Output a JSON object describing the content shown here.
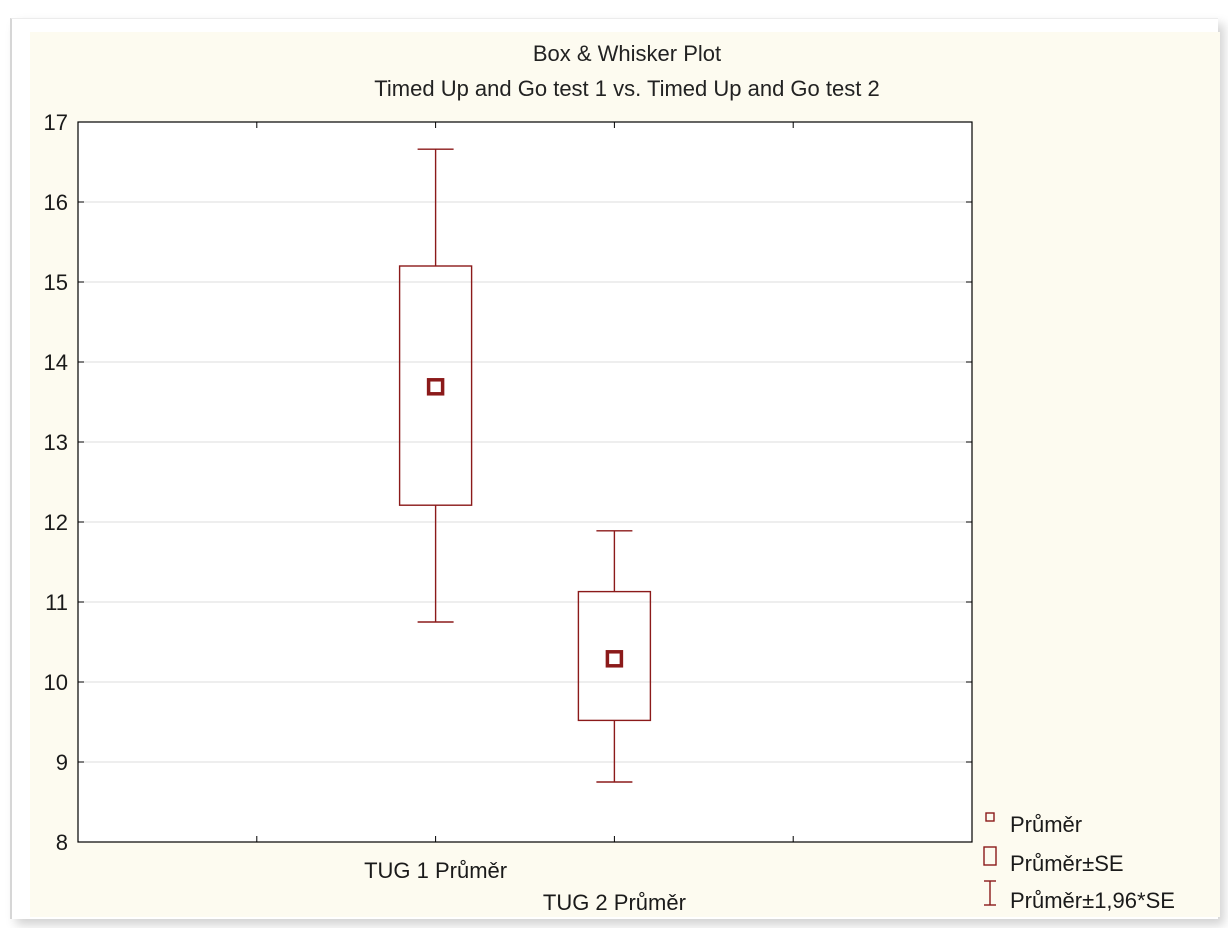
{
  "chart_data": {
    "type": "boxplot",
    "title": "Box & Whisker Plot",
    "subtitle": "Timed Up and Go test 1 vs. Timed Up and Go test 2",
    "xlabel": "",
    "ylabel": "",
    "ylim": [
      8,
      17
    ],
    "yticks": [
      8,
      9,
      10,
      11,
      12,
      13,
      14,
      15,
      16,
      17
    ],
    "grid": true,
    "categories": [
      "TUG 1 Průměr",
      "TUG 2 Průměr"
    ],
    "boxes": [
      {
        "category": "TUG 1 Průměr",
        "mean": 13.69,
        "box_low": 12.21,
        "box_high": 15.2,
        "whisker_low": 10.75,
        "whisker_high": 16.66
      },
      {
        "category": "TUG 2 Průměr",
        "mean": 10.29,
        "box_low": 9.52,
        "box_high": 11.13,
        "whisker_low": 8.75,
        "whisker_high": 11.89
      }
    ],
    "legend": {
      "position": "bottom-right",
      "items": [
        "Průměr",
        "Průměr±SE",
        "Průměr±1,96*SE"
      ]
    }
  },
  "colors": {
    "series": "#8b1a1a",
    "panel_background": "#fdfbf0",
    "plot_background": "#ffffff",
    "grid": "#dcdcdc",
    "axis": "#000000"
  }
}
